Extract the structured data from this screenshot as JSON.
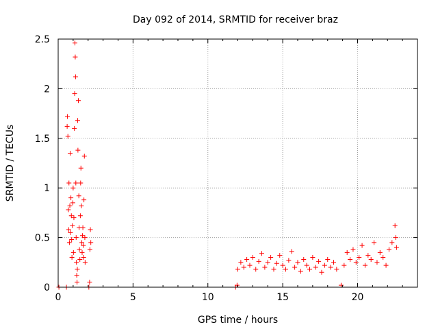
{
  "chart_data": {
    "type": "scatter",
    "title": "Day 092 of 2014, SRMTID for receiver braz",
    "xlabel": "GPS time / hours",
    "ylabel": "SRMTID / TECUs",
    "xlim": [
      0,
      24
    ],
    "ylim": [
      0,
      2.5
    ],
    "xticks": [
      0,
      5,
      10,
      15,
      20
    ],
    "yticks": [
      0,
      0.5,
      1,
      1.5,
      2,
      2.5
    ],
    "xtick_labels": [
      "0",
      "5",
      "10",
      "15",
      "20"
    ],
    "ytick_labels": [
      "0",
      "0.5",
      "1",
      "1.5",
      "2",
      "2.5"
    ],
    "grid": true,
    "marker": "plus",
    "series": [
      {
        "name": "SRMTID",
        "color": "#ff0000",
        "points": [
          [
            0.05,
            0.0
          ],
          [
            0.55,
            0.0
          ],
          [
            0.6,
            1.62
          ],
          [
            0.62,
            1.72
          ],
          [
            0.65,
            1.52
          ],
          [
            0.68,
            0.78
          ],
          [
            0.7,
            0.58
          ],
          [
            0.72,
            1.05
          ],
          [
            0.75,
            0.45
          ],
          [
            0.78,
            0.82
          ],
          [
            0.8,
            1.35
          ],
          [
            0.82,
            0.55
          ],
          [
            0.85,
            0.9
          ],
          [
            0.88,
            0.72
          ],
          [
            0.9,
            0.48
          ],
          [
            0.92,
            0.3
          ],
          [
            0.95,
            0.62
          ],
          [
            0.98,
            0.85
          ],
          [
            1.0,
            1.0
          ],
          [
            1.02,
            0.35
          ],
          [
            1.05,
            0.7
          ],
          [
            1.08,
            1.6
          ],
          [
            1.1,
            1.95
          ],
          [
            1.12,
            2.46
          ],
          [
            1.14,
            2.32
          ],
          [
            1.16,
            2.12
          ],
          [
            1.18,
            1.05
          ],
          [
            1.2,
            0.5
          ],
          [
            1.22,
            0.25
          ],
          [
            1.24,
            0.12
          ],
          [
            1.26,
            0.05
          ],
          [
            1.28,
            0.18
          ],
          [
            1.3,
            1.68
          ],
          [
            1.32,
            1.38
          ],
          [
            1.35,
            1.88
          ],
          [
            1.38,
            0.92
          ],
          [
            1.4,
            0.6
          ],
          [
            1.42,
            0.38
          ],
          [
            1.45,
            0.28
          ],
          [
            1.48,
            0.72
          ],
          [
            1.5,
            1.05
          ],
          [
            1.52,
            1.2
          ],
          [
            1.55,
            0.82
          ],
          [
            1.58,
            0.45
          ],
          [
            1.6,
            0.35
          ],
          [
            1.62,
            0.52
          ],
          [
            1.65,
            0.6
          ],
          [
            1.68,
            0.42
          ],
          [
            1.7,
            0.3
          ],
          [
            1.72,
            0.88
          ],
          [
            1.75,
            1.32
          ],
          [
            1.78,
            0.5
          ],
          [
            1.8,
            0.25
          ],
          [
            2.05,
            0.0
          ],
          [
            2.1,
            0.05
          ],
          [
            2.12,
            0.38
          ],
          [
            2.15,
            0.58
          ],
          [
            2.18,
            0.45
          ],
          [
            11.85,
            0.0
          ],
          [
            11.95,
            0.02
          ],
          [
            12.0,
            0.18
          ],
          [
            12.2,
            0.25
          ],
          [
            12.4,
            0.2
          ],
          [
            12.6,
            0.28
          ],
          [
            12.8,
            0.22
          ],
          [
            13.0,
            0.3
          ],
          [
            13.2,
            0.18
          ],
          [
            13.4,
            0.26
          ],
          [
            13.6,
            0.34
          ],
          [
            13.8,
            0.2
          ],
          [
            14.0,
            0.25
          ],
          [
            14.2,
            0.3
          ],
          [
            14.4,
            0.18
          ],
          [
            14.6,
            0.24
          ],
          [
            14.8,
            0.32
          ],
          [
            15.0,
            0.22
          ],
          [
            15.2,
            0.18
          ],
          [
            15.4,
            0.27
          ],
          [
            15.6,
            0.36
          ],
          [
            15.8,
            0.2
          ],
          [
            16.0,
            0.25
          ],
          [
            16.2,
            0.16
          ],
          [
            16.4,
            0.28
          ],
          [
            16.6,
            0.22
          ],
          [
            16.8,
            0.18
          ],
          [
            17.0,
            0.3
          ],
          [
            17.2,
            0.2
          ],
          [
            17.4,
            0.26
          ],
          [
            17.6,
            0.15
          ],
          [
            17.8,
            0.22
          ],
          [
            18.0,
            0.28
          ],
          [
            18.2,
            0.2
          ],
          [
            18.4,
            0.25
          ],
          [
            18.6,
            0.18
          ],
          [
            18.9,
            0.02
          ],
          [
            19.1,
            0.22
          ],
          [
            19.3,
            0.35
          ],
          [
            19.5,
            0.28
          ],
          [
            19.7,
            0.38
          ],
          [
            19.9,
            0.25
          ],
          [
            20.1,
            0.3
          ],
          [
            20.3,
            0.42
          ],
          [
            20.5,
            0.22
          ],
          [
            20.7,
            0.32
          ],
          [
            20.9,
            0.28
          ],
          [
            21.1,
            0.45
          ],
          [
            21.3,
            0.25
          ],
          [
            21.5,
            0.35
          ],
          [
            21.7,
            0.3
          ],
          [
            21.9,
            0.22
          ],
          [
            22.1,
            0.38
          ],
          [
            22.3,
            0.45
          ],
          [
            22.5,
            0.62
          ],
          [
            22.55,
            0.5
          ],
          [
            22.6,
            0.4
          ]
        ]
      }
    ]
  }
}
